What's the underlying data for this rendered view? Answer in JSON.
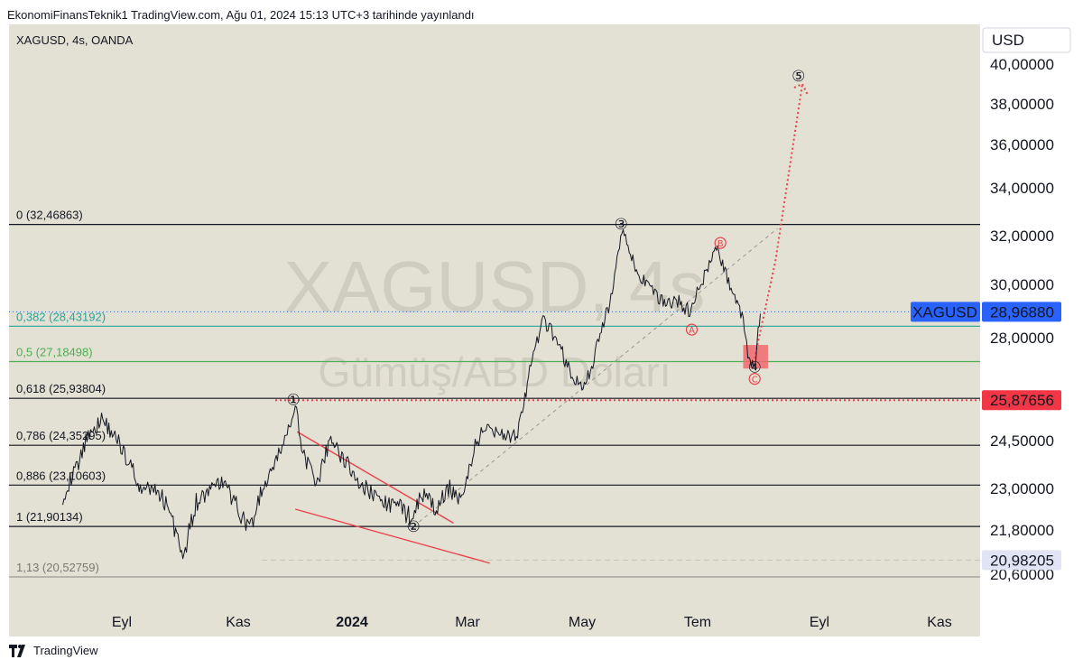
{
  "header": {
    "publish_text": "EkonomiFinansTeknik1 TradingView.com, Ağu 01, 2024 15:13 UTC+3 tarihinde yayınlandı"
  },
  "symbol_info": "XAGUSD, 4s, OANDA",
  "currency_button": "USD",
  "watermark": {
    "symbol": "XAGUSD, 4s",
    "description": "Gümüş/ABD Doları"
  },
  "footer": {
    "brand": "TradingView"
  },
  "colors": {
    "chart_bg": "#e3e0d4",
    "price_line": "#131722",
    "annotation_red": "#e8434b",
    "fib_382": "#26a69a",
    "fib_5": "#4caf50",
    "current_price_label": "#2962ff",
    "level_label": "#f23645"
  },
  "chart_data": {
    "type": "line",
    "symbol": "XAGUSD",
    "timeframe": "4s",
    "source": "OANDA",
    "x_labels": [
      "Eyl",
      "Kas",
      "2024",
      "Mar",
      "May",
      "Tem",
      "Eyl",
      "Kas"
    ],
    "y_ticks": [
      "40,00000",
      "38,00000",
      "36,00000",
      "34,00000",
      "32,00000",
      "30,00000",
      "28,00000",
      "24,50000",
      "23,00000",
      "21,80000",
      "20,60000"
    ],
    "ylim": [
      20.1,
      41.2
    ],
    "price_labels": {
      "current": {
        "symbol": "XAGUSD",
        "value": "28,96880"
      },
      "level": "25,87656",
      "low": "20,98205"
    },
    "fib_levels": [
      {
        "ratio": "0",
        "price": "32,46863",
        "value": 32.46863
      },
      {
        "ratio": "0,382",
        "price": "28,43192",
        "value": 28.43192
      },
      {
        "ratio": "0,5",
        "price": "27,18498",
        "value": 27.18498
      },
      {
        "ratio": "0,618",
        "price": "25,93804",
        "value": 25.93804
      },
      {
        "ratio": "0,786",
        "price": "24,35295",
        "value": 24.35295
      },
      {
        "ratio": "0,886",
        "price": "23,10603",
        "value": 23.10603
      },
      {
        "ratio": "1",
        "price": "21,90134",
        "value": 21.90134
      },
      {
        "ratio": "1,13",
        "price": "20,52759",
        "value": 20.52759
      }
    ],
    "wave_labels": [
      {
        "label": "①",
        "date": "2023-11-30",
        "price": 25.9
      },
      {
        "label": "②",
        "date": "2024-02-01",
        "price": 21.9
      },
      {
        "label": "③",
        "date": "2024-05-20",
        "price": 32.5
      },
      {
        "label": "④",
        "date": "2024-07-29",
        "price": 27.0
      },
      {
        "label": "⑤",
        "date": "2024-08-21",
        "price": 39.4
      },
      {
        "label": "A",
        "date": "2024-06-26",
        "price": 28.3
      },
      {
        "label": "B",
        "date": "2024-07-11",
        "price": 31.7
      },
      {
        "label": "C",
        "date": "2024-07-29",
        "price": 26.6
      }
    ],
    "series": [
      {
        "x": [
          "2023-08-01",
          "2023-08-08",
          "2023-08-15",
          "2023-08-22",
          "2023-08-29",
          "2023-09-05",
          "2023-09-12",
          "2023-09-19",
          "2023-09-26",
          "2023-10-03",
          "2023-10-10",
          "2023-10-17",
          "2023-10-24",
          "2023-10-31",
          "2023-11-07",
          "2023-11-14",
          "2023-11-21",
          "2023-11-28",
          "2023-12-01",
          "2023-12-05",
          "2023-12-12",
          "2023-12-19",
          "2023-12-26",
          "2024-01-02",
          "2024-01-09",
          "2024-01-16",
          "2024-01-23",
          "2024-01-30",
          "2024-02-06",
          "2024-02-13",
          "2024-02-20",
          "2024-02-27",
          "2024-03-05",
          "2024-03-12",
          "2024-03-19",
          "2024-03-26",
          "2024-04-02",
          "2024-04-09",
          "2024-04-16",
          "2024-04-23",
          "2024-04-30",
          "2024-05-07",
          "2024-05-14",
          "2024-05-21",
          "2024-05-28",
          "2024-06-04",
          "2024-06-11",
          "2024-06-18",
          "2024-06-25",
          "2024-07-02",
          "2024-07-09",
          "2024-07-16",
          "2024-07-23",
          "2024-07-26",
          "2024-07-29",
          "2024-08-01"
        ],
        "y": [
          22.8,
          23.6,
          24.8,
          25.2,
          24.6,
          23.8,
          22.9,
          23.0,
          22.4,
          21.0,
          22.6,
          22.9,
          23.2,
          22.5,
          21.8,
          23.0,
          23.8,
          25.0,
          25.6,
          24.2,
          23.0,
          24.5,
          24.0,
          23.3,
          22.9,
          22.6,
          22.5,
          22.2,
          22.8,
          22.4,
          23.0,
          22.7,
          24.5,
          25.0,
          24.7,
          24.6,
          26.8,
          28.6,
          28.0,
          26.8,
          26.2,
          27.6,
          29.3,
          32.4,
          30.5,
          29.8,
          29.3,
          29.4,
          29.0,
          30.2,
          31.5,
          30.0,
          28.6,
          27.3,
          27.1,
          28.9
        ]
      }
    ]
  }
}
